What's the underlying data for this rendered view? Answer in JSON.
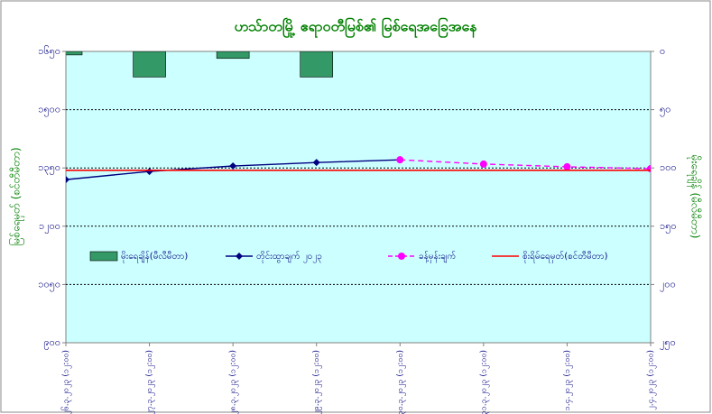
{
  "chart_data": {
    "type": "combo",
    "title": "ဟသ်ာတမြို့ ဧရာဝတီမြစ်၏ မြစ်ရေအခြေအနေ",
    "y_label": "မြစ်ရေမှတ် (စင်တီမီတာ)",
    "y2_label": "မိုးရေချိန် (မီလီမီတာ)",
    "categories": [
      "၂၆.၃.၂၀၂၃ (၁၂:၀၀)",
      "၂၇.၃.၂၀၂၃ (၁၂:၀၀)",
      "၂၈.၃.၂၀၂၃ (၁၂:၀၀)",
      "၂၉.၃.၂၀၂၃ (၁၂:၀၀)",
      "၃၀.၃.၂၀၂၃ (၁၂:၀၀)",
      "၃၁.၃.၂၀၂၃ (၁၂:၀၀)",
      "၁.၄.၂၀၂၃ (၁၂:၀၀)",
      "၂.၄.၂၀၂၃ (၁၂:၀၀)"
    ],
    "series": [
      {
        "name": "မိုးရေချိန်(မီလီမီတာ)",
        "type": "bar",
        "axis": "y2",
        "color": "#339966",
        "values": [
          3,
          22,
          6,
          22,
          null,
          null,
          null,
          null
        ]
      },
      {
        "name": "တိုင်းထွာချက် ၂၀၂၃",
        "type": "line",
        "color": "#000080",
        "marker": "diamond",
        "dashed": false,
        "values": [
          1320,
          1341,
          1355,
          1364,
          1371,
          null,
          null,
          null
        ]
      },
      {
        "name": "ခန့်မှန်းချက်",
        "type": "line",
        "color": "#ff00ff",
        "marker": "circle",
        "dashed": true,
        "values": [
          null,
          null,
          null,
          null,
          1371,
          1360,
          1353,
          1348
        ]
      },
      {
        "name": "စိုးရိမ်ရေမှတ်(စင်တီမီတာ)",
        "type": "line",
        "color": "#ff0000",
        "marker": "none",
        "dashed": false,
        "values": [
          1344,
          1344,
          1344,
          1344,
          1344,
          1344,
          1344,
          1344
        ]
      }
    ],
    "ylim": [
      900,
      1650
    ],
    "yticks": [
      {
        "value": 900,
        "label": "၉၀၀"
      },
      {
        "value": 1050,
        "label": "၁၀၅၀"
      },
      {
        "value": 1200,
        "label": "၁၂၀၀"
      },
      {
        "value": 1350,
        "label": "၁၃၅၀"
      },
      {
        "value": 1500,
        "label": "၁၅၀၀"
      },
      {
        "value": 1650,
        "label": "၁၆၅၀"
      }
    ],
    "y2lim": [
      0,
      250
    ],
    "y2_inverted": true,
    "y2ticks": [
      {
        "value": 0,
        "label": "၀"
      },
      {
        "value": 50,
        "label": "၅၀"
      },
      {
        "value": 100,
        "label": "၁၀၀"
      },
      {
        "value": 150,
        "label": "၁၅၀"
      },
      {
        "value": 200,
        "label": "၂၀၀"
      },
      {
        "value": 250,
        "label": "၂၅၀"
      }
    ],
    "grid": true,
    "plot_color": "#ccffff"
  }
}
